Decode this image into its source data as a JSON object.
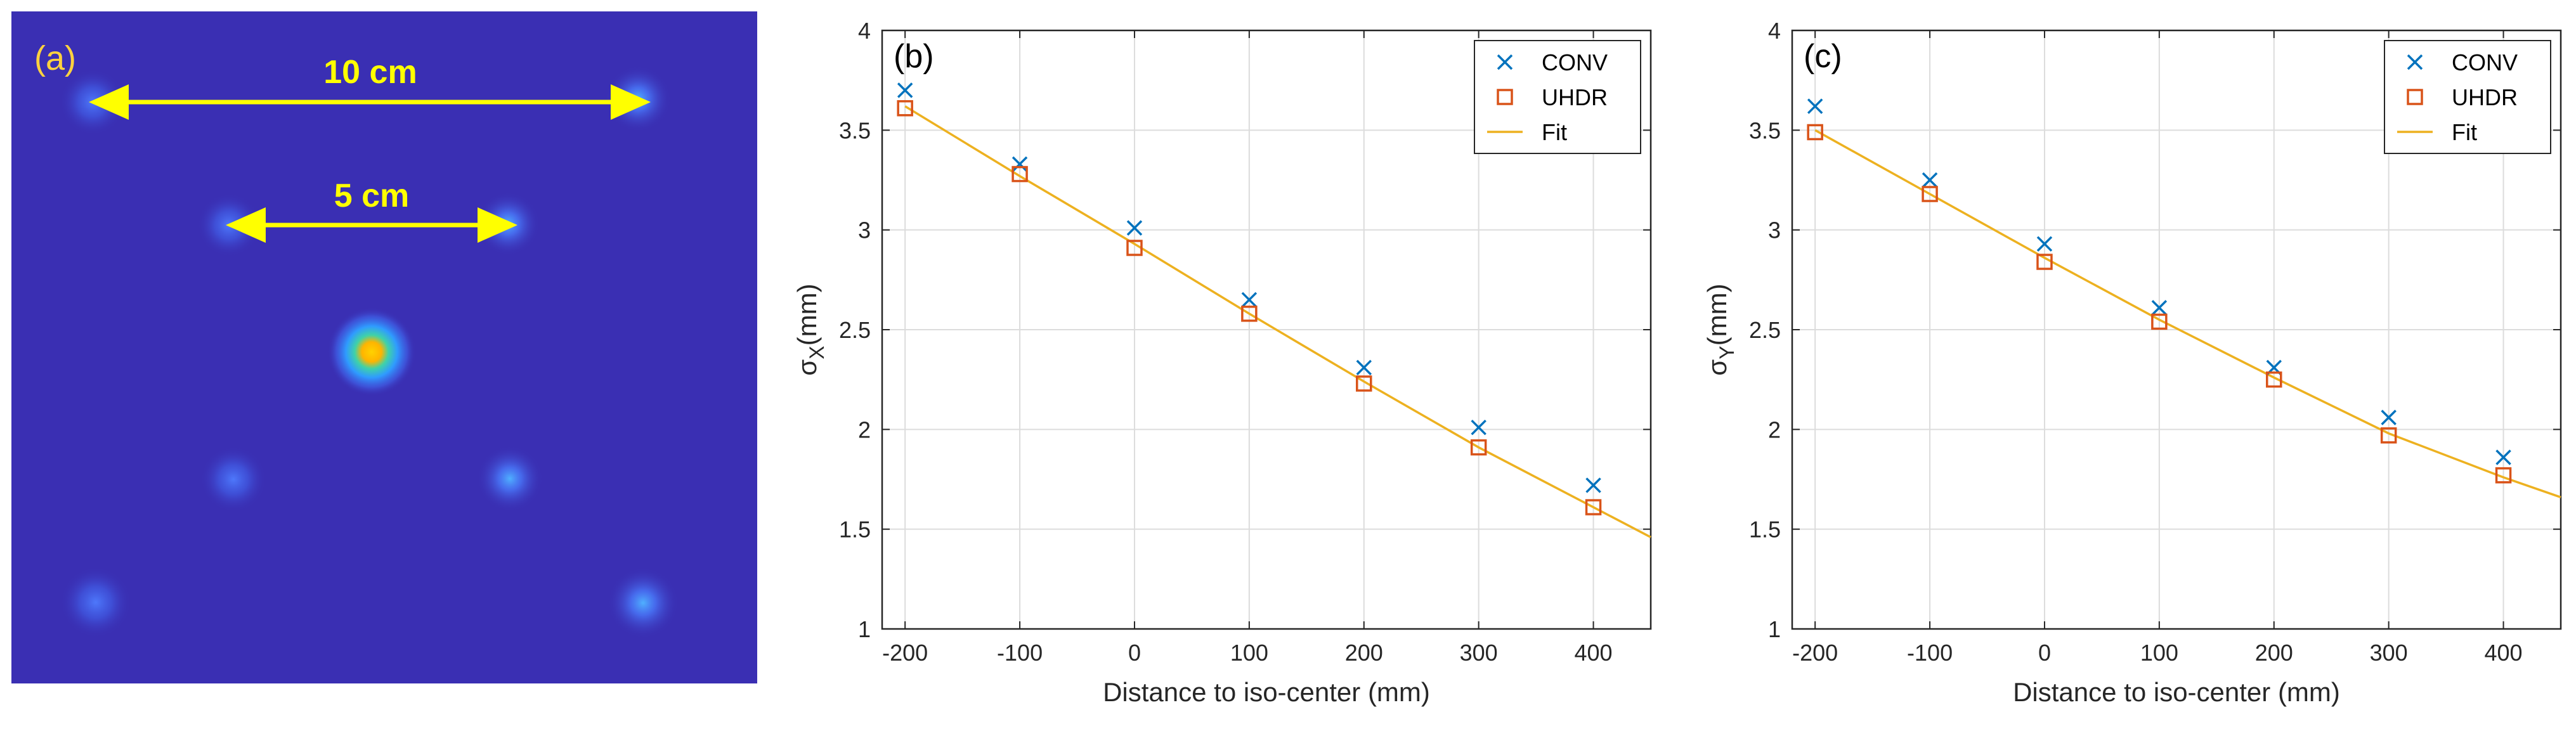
{
  "panel_a": {
    "label": "(a)",
    "annotations": [
      {
        "text": "10 cm",
        "spacing_cm": 10
      },
      {
        "text": "5 cm",
        "spacing_cm": 5
      }
    ],
    "colors": {
      "background": "#3a2fb3",
      "arrow": "#ffff00",
      "label": "#ffd23f"
    }
  },
  "chart_data": [
    {
      "panel": "(b)",
      "type": "scatter",
      "xlabel": "Distance to iso-center (mm)",
      "ylabel_symbol": "σ",
      "ylabel_sub": "X",
      "ylabel_unit": "(mm)",
      "xlim": [
        -220,
        450
      ],
      "ylim": [
        1,
        4
      ],
      "xticks": [
        -200,
        -100,
        0,
        100,
        200,
        300,
        400
      ],
      "yticks": [
        1,
        1.5,
        2,
        2.5,
        3,
        3.5,
        4
      ],
      "grid": true,
      "legend_position": "top-right",
      "series": [
        {
          "name": "CONV",
          "marker": "x",
          "color": "#0072bd",
          "x": [
            -200,
            -100,
            0,
            100,
            200,
            300,
            400
          ],
          "y": [
            3.7,
            3.33,
            3.01,
            2.65,
            2.31,
            2.01,
            1.72
          ]
        },
        {
          "name": "UHDR",
          "marker": "square",
          "color": "#d95319",
          "x": [
            -200,
            -100,
            0,
            100,
            200,
            300,
            400
          ],
          "y": [
            3.61,
            3.28,
            2.91,
            2.58,
            2.23,
            1.91,
            1.61
          ]
        },
        {
          "name": "Fit",
          "marker": "line",
          "color": "#edb120",
          "x": [
            -200,
            -100,
            0,
            100,
            200,
            300,
            400,
            450
          ],
          "y": [
            3.62,
            3.27,
            2.93,
            2.58,
            2.24,
            1.91,
            1.61,
            1.46
          ]
        }
      ]
    },
    {
      "panel": "(c)",
      "type": "scatter",
      "xlabel": "Distance to iso-center (mm)",
      "ylabel_symbol": "σ",
      "ylabel_sub": "Y",
      "ylabel_unit": "(mm)",
      "xlim": [
        -220,
        450
      ],
      "ylim": [
        1,
        4
      ],
      "xticks": [
        -200,
        -100,
        0,
        100,
        200,
        300,
        400
      ],
      "yticks": [
        1,
        1.5,
        2,
        2.5,
        3,
        3.5,
        4
      ],
      "grid": true,
      "legend_position": "top-right",
      "series": [
        {
          "name": "CONV",
          "marker": "x",
          "color": "#0072bd",
          "x": [
            -200,
            -100,
            0,
            100,
            200,
            300,
            400
          ],
          "y": [
            3.62,
            3.25,
            2.93,
            2.61,
            2.31,
            2.06,
            1.86
          ]
        },
        {
          "name": "UHDR",
          "marker": "square",
          "color": "#d95319",
          "x": [
            -200,
            -100,
            0,
            100,
            200,
            300,
            400
          ],
          "y": [
            3.49,
            3.18,
            2.84,
            2.54,
            2.25,
            1.97,
            1.77
          ]
        },
        {
          "name": "Fit",
          "marker": "line",
          "color": "#edb120",
          "x": [
            -200,
            -100,
            0,
            100,
            200,
            300,
            400,
            450
          ],
          "y": [
            3.5,
            3.18,
            2.86,
            2.55,
            2.26,
            1.98,
            1.76,
            1.66
          ]
        }
      ]
    }
  ]
}
